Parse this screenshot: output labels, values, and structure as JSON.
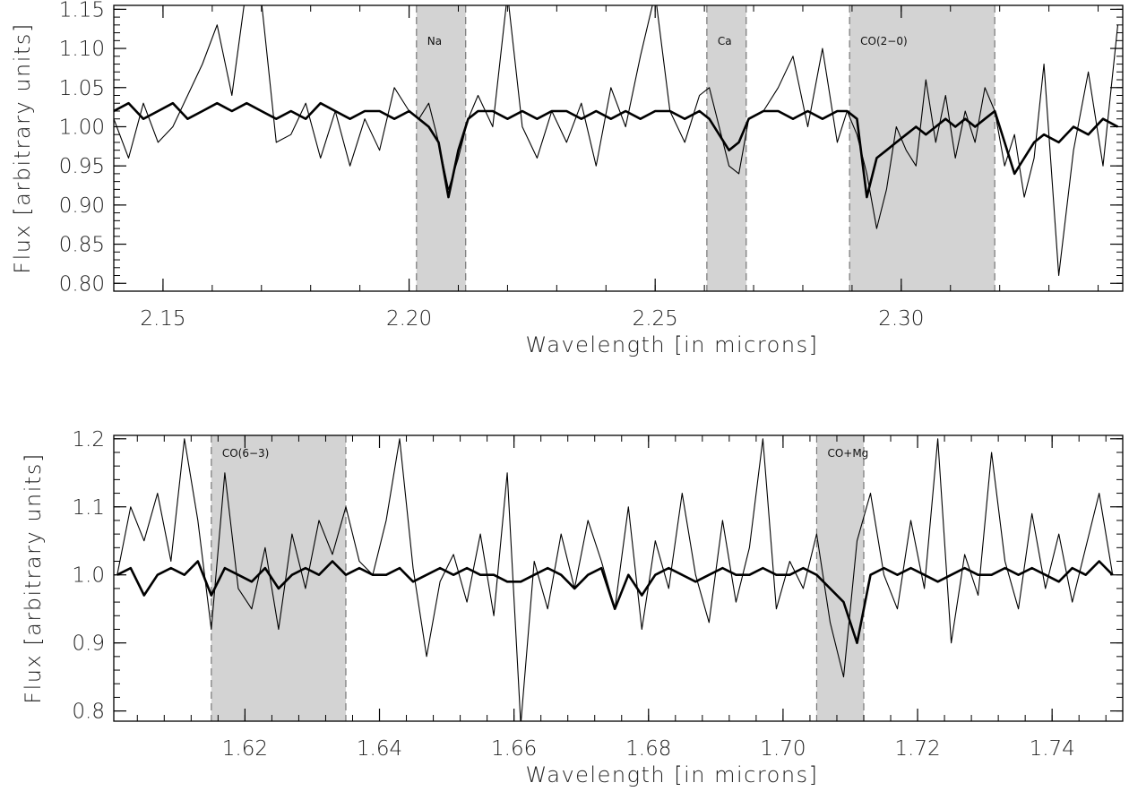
{
  "chart_data": [
    {
      "type": "line",
      "panel": "top",
      "xlabel": "Wavelength [in microns]",
      "ylabel": "Flux [arbitrary units]",
      "xlim": [
        2.14,
        2.345
      ],
      "ylim": [
        0.79,
        1.155
      ],
      "xticks": [
        2.15,
        2.2,
        2.25,
        2.3
      ],
      "xtick_labels": [
        "2.15",
        "2.20",
        "2.25",
        "2.30"
      ],
      "yticks": [
        0.8,
        0.85,
        0.9,
        0.95,
        1.0,
        1.05,
        1.1,
        1.15
      ],
      "ytick_labels": [
        "0.80",
        "0.85",
        "0.90",
        "0.95",
        "1.00",
        "1.05",
        "1.10",
        "1.15"
      ],
      "grid": false,
      "band_color": "#d3d3d3",
      "bands": [
        {
          "label": "Na",
          "x0": 2.2015,
          "x1": 2.2115
        },
        {
          "label": "Ca",
          "x0": 2.2605,
          "x1": 2.2685
        },
        {
          "label": "CO(2−0)",
          "x0": 2.2895,
          "x1": 2.319
        }
      ],
      "series": [
        {
          "style": "thin",
          "x": [
            2.14,
            2.143,
            2.146,
            2.149,
            2.152,
            2.155,
            2.158,
            2.161,
            2.164,
            2.167,
            2.17,
            2.173,
            2.176,
            2.179,
            2.182,
            2.185,
            2.188,
            2.191,
            2.194,
            2.197,
            2.2,
            2.202,
            2.204,
            2.206,
            2.208,
            2.21,
            2.212,
            2.214,
            2.217,
            2.22,
            2.223,
            2.226,
            2.229,
            2.232,
            2.235,
            2.238,
            2.241,
            2.244,
            2.247,
            2.25,
            2.253,
            2.256,
            2.259,
            2.261,
            2.263,
            2.265,
            2.267,
            2.269,
            2.272,
            2.275,
            2.278,
            2.281,
            2.284,
            2.287,
            2.289,
            2.291,
            2.293,
            2.295,
            2.297,
            2.299,
            2.301,
            2.303,
            2.305,
            2.307,
            2.309,
            2.311,
            2.313,
            2.315,
            2.317,
            2.319,
            2.321,
            2.323,
            2.325,
            2.327,
            2.329,
            2.332,
            2.335,
            2.338,
            2.341,
            2.344
          ],
          "y": [
            1.01,
            0.96,
            1.03,
            0.98,
            1.0,
            1.04,
            1.08,
            1.13,
            1.04,
            1.18,
            1.16,
            0.98,
            0.99,
            1.03,
            0.96,
            1.02,
            0.95,
            1.01,
            0.97,
            1.05,
            1.02,
            1.01,
            1.03,
            0.98,
            0.92,
            0.96,
            1.01,
            1.04,
            1.0,
            1.17,
            1.0,
            0.96,
            1.02,
            0.98,
            1.03,
            0.95,
            1.05,
            1.0,
            1.09,
            1.17,
            1.02,
            0.98,
            1.04,
            1.05,
            1.0,
            0.95,
            0.94,
            1.01,
            1.02,
            1.05,
            1.09,
            1.0,
            1.1,
            0.98,
            1.02,
            0.99,
            0.94,
            0.87,
            0.92,
            1.0,
            0.97,
            0.95,
            1.06,
            0.98,
            1.04,
            0.96,
            1.02,
            0.98,
            1.05,
            1.02,
            0.95,
            0.99,
            0.91,
            0.96,
            1.08,
            0.81,
            0.97,
            1.07,
            0.95,
            1.13
          ]
        },
        {
          "style": "thick",
          "x": [
            2.14,
            2.143,
            2.146,
            2.149,
            2.152,
            2.155,
            2.158,
            2.161,
            2.164,
            2.167,
            2.17,
            2.173,
            2.176,
            2.179,
            2.182,
            2.185,
            2.188,
            2.191,
            2.194,
            2.197,
            2.2,
            2.202,
            2.204,
            2.206,
            2.208,
            2.21,
            2.212,
            2.214,
            2.217,
            2.22,
            2.223,
            2.226,
            2.229,
            2.232,
            2.235,
            2.238,
            2.241,
            2.244,
            2.247,
            2.25,
            2.253,
            2.256,
            2.259,
            2.261,
            2.263,
            2.265,
            2.267,
            2.269,
            2.272,
            2.275,
            2.278,
            2.281,
            2.284,
            2.287,
            2.289,
            2.291,
            2.293,
            2.295,
            2.297,
            2.299,
            2.301,
            2.303,
            2.305,
            2.307,
            2.309,
            2.311,
            2.313,
            2.315,
            2.317,
            2.319,
            2.321,
            2.323,
            2.325,
            2.327,
            2.329,
            2.332,
            2.335,
            2.338,
            2.341,
            2.344
          ],
          "y": [
            1.02,
            1.03,
            1.01,
            1.02,
            1.03,
            1.01,
            1.02,
            1.03,
            1.02,
            1.03,
            1.02,
            1.01,
            1.02,
            1.01,
            1.03,
            1.02,
            1.01,
            1.02,
            1.02,
            1.01,
            1.02,
            1.01,
            1.0,
            0.98,
            0.91,
            0.97,
            1.01,
            1.02,
            1.02,
            1.01,
            1.02,
            1.01,
            1.02,
            1.02,
            1.01,
            1.02,
            1.01,
            1.02,
            1.01,
            1.02,
            1.02,
            1.01,
            1.02,
            1.01,
            0.99,
            0.97,
            0.98,
            1.01,
            1.02,
            1.02,
            1.01,
            1.02,
            1.01,
            1.02,
            1.02,
            1.01,
            0.91,
            0.96,
            0.97,
            0.98,
            0.99,
            1.0,
            0.99,
            1.0,
            1.01,
            1.0,
            1.01,
            1.0,
            1.01,
            1.02,
            0.98,
            0.94,
            0.96,
            0.98,
            0.99,
            0.98,
            1.0,
            0.99,
            1.01,
            1.0
          ]
        }
      ]
    },
    {
      "type": "line",
      "panel": "bottom",
      "xlabel": "Wavelength [in microns]",
      "ylabel": "Flux [arbitrary units]",
      "xlim": [
        1.6005,
        1.7505
      ],
      "ylim": [
        0.785,
        1.205
      ],
      "xticks": [
        1.62,
        1.64,
        1.66,
        1.68,
        1.7,
        1.72,
        1.74
      ],
      "xtick_labels": [
        "1.62",
        "1.64",
        "1.66",
        "1.68",
        "1.70",
        "1.72",
        "1.74"
      ],
      "yticks": [
        0.8,
        0.9,
        1.0,
        1.1,
        1.2
      ],
      "ytick_labels": [
        "0.8",
        "0.9",
        "1.0",
        "1.1",
        "1.2"
      ],
      "grid": false,
      "band_color": "#d3d3d3",
      "bands": [
        {
          "label": "CO(6−3)",
          "x0": 1.615,
          "x1": 1.635
        },
        {
          "label": "CO+Mg",
          "x0": 1.705,
          "x1": 1.712
        }
      ],
      "series": [
        {
          "style": "thin",
          "x": [
            1.601,
            1.603,
            1.605,
            1.607,
            1.609,
            1.611,
            1.613,
            1.615,
            1.617,
            1.619,
            1.621,
            1.623,
            1.625,
            1.627,
            1.629,
            1.631,
            1.633,
            1.635,
            1.637,
            1.639,
            1.641,
            1.643,
            1.645,
            1.647,
            1.649,
            1.651,
            1.653,
            1.655,
            1.657,
            1.659,
            1.661,
            1.663,
            1.665,
            1.667,
            1.669,
            1.671,
            1.673,
            1.675,
            1.677,
            1.679,
            1.681,
            1.683,
            1.685,
            1.687,
            1.689,
            1.691,
            1.693,
            1.695,
            1.697,
            1.699,
            1.701,
            1.703,
            1.705,
            1.707,
            1.709,
            1.711,
            1.713,
            1.715,
            1.717,
            1.719,
            1.721,
            1.723,
            1.725,
            1.727,
            1.729,
            1.731,
            1.733,
            1.735,
            1.737,
            1.739,
            1.741,
            1.743,
            1.745,
            1.747,
            1.749
          ],
          "y": [
            1.0,
            1.1,
            1.05,
            1.12,
            1.02,
            1.2,
            1.08,
            0.92,
            1.15,
            0.98,
            0.95,
            1.04,
            0.92,
            1.06,
            0.98,
            1.08,
            1.03,
            1.1,
            1.02,
            1.0,
            1.08,
            1.2,
            1.01,
            0.88,
            0.99,
            1.03,
            0.96,
            1.06,
            0.94,
            1.15,
            0.78,
            1.02,
            0.95,
            1.06,
            0.98,
            1.08,
            1.02,
            0.95,
            1.1,
            0.92,
            1.05,
            0.98,
            1.12,
            1.0,
            0.93,
            1.08,
            0.96,
            1.04,
            1.2,
            0.95,
            1.02,
            0.98,
            1.06,
            0.93,
            0.85,
            1.05,
            1.12,
            1.0,
            0.95,
            1.08,
            0.98,
            1.2,
            0.9,
            1.03,
            0.97,
            1.18,
            1.02,
            0.95,
            1.09,
            0.98,
            1.06,
            0.96,
            1.04,
            1.12,
            1.0
          ]
        },
        {
          "style": "thick",
          "x": [
            1.601,
            1.603,
            1.605,
            1.607,
            1.609,
            1.611,
            1.613,
            1.615,
            1.617,
            1.619,
            1.621,
            1.623,
            1.625,
            1.627,
            1.629,
            1.631,
            1.633,
            1.635,
            1.637,
            1.639,
            1.641,
            1.643,
            1.645,
            1.647,
            1.649,
            1.651,
            1.653,
            1.655,
            1.657,
            1.659,
            1.661,
            1.663,
            1.665,
            1.667,
            1.669,
            1.671,
            1.673,
            1.675,
            1.677,
            1.679,
            1.681,
            1.683,
            1.685,
            1.687,
            1.689,
            1.691,
            1.693,
            1.695,
            1.697,
            1.699,
            1.701,
            1.703,
            1.705,
            1.707,
            1.709,
            1.711,
            1.713,
            1.715,
            1.717,
            1.719,
            1.721,
            1.723,
            1.725,
            1.727,
            1.729,
            1.731,
            1.733,
            1.735,
            1.737,
            1.739,
            1.741,
            1.743,
            1.745,
            1.747,
            1.749
          ],
          "y": [
            1.0,
            1.01,
            0.97,
            1.0,
            1.01,
            1.0,
            1.02,
            0.97,
            1.01,
            1.0,
            0.99,
            1.01,
            0.98,
            1.0,
            1.01,
            1.0,
            1.02,
            1.0,
            1.01,
            1.0,
            1.0,
            1.01,
            0.99,
            1.0,
            1.01,
            1.0,
            1.01,
            1.0,
            1.0,
            0.99,
            0.99,
            1.0,
            1.01,
            1.0,
            0.98,
            1.0,
            1.01,
            0.95,
            1.0,
            0.97,
            1.0,
            1.01,
            1.0,
            0.99,
            1.0,
            1.01,
            1.0,
            1.0,
            1.01,
            1.0,
            1.0,
            1.01,
            1.0,
            0.98,
            0.96,
            0.9,
            1.0,
            1.01,
            1.0,
            1.01,
            1.0,
            0.99,
            1.0,
            1.01,
            1.0,
            1.0,
            1.01,
            1.0,
            1.01,
            1.0,
            0.99,
            1.01,
            1.0,
            1.02,
            1.0
          ]
        }
      ]
    }
  ]
}
